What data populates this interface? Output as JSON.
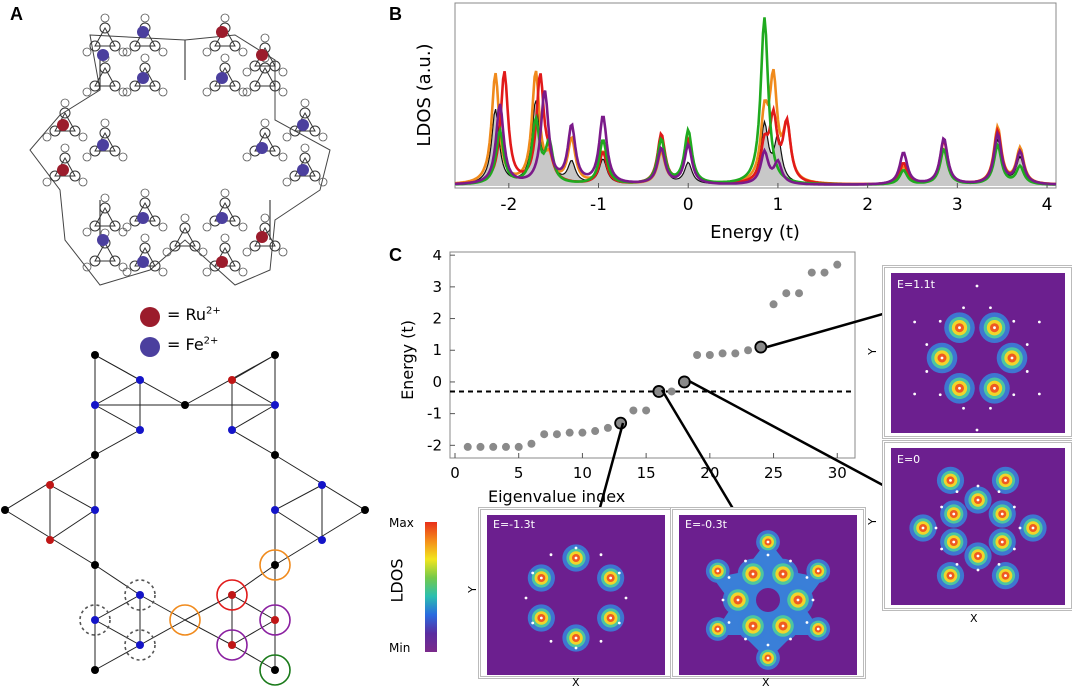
{
  "panels": {
    "a": {
      "letter": "A",
      "legend": [
        {
          "label": "= Ru",
          "sup": "2+",
          "color": "#9b1c2c"
        },
        {
          "label": "= Fe",
          "sup": "2+",
          "color": "#4b3f9e"
        }
      ]
    },
    "b": {
      "letter": "B",
      "chart_data": {
        "type": "line",
        "title": "",
        "xlabel": "Energy (t)",
        "ylabel": "LDOS (a.u.)",
        "xlim": [
          -2.6,
          4.1
        ],
        "xticks": [
          -2,
          -1,
          0,
          1,
          2,
          3,
          4
        ],
        "series": [
          {
            "name": "orange",
            "color": "#f08a1c",
            "peaks": [
              [
                -2.15,
                0.62
              ],
              [
                -1.7,
                0.62
              ],
              [
                -1.55,
                0.12
              ],
              [
                -1.3,
                0.25
              ],
              [
                -0.95,
                0.18
              ],
              [
                -0.3,
                0.18
              ],
              [
                0.0,
                0.25
              ],
              [
                0.85,
                0.35
              ],
              [
                0.95,
                0.55
              ],
              [
                1.1,
                0.3
              ],
              [
                2.4,
                0.1
              ],
              [
                2.85,
                0.2
              ],
              [
                3.45,
                0.32
              ],
              [
                3.7,
                0.2
              ]
            ]
          },
          {
            "name": "red",
            "color": "#e11a1a",
            "peaks": [
              [
                -2.05,
                0.63
              ],
              [
                -1.65,
                0.6
              ],
              [
                -1.55,
                0.1
              ],
              [
                -0.95,
                0.18
              ],
              [
                -0.3,
                0.28
              ],
              [
                0.0,
                0.25
              ],
              [
                0.85,
                0.2
              ],
              [
                0.95,
                0.35
              ],
              [
                1.1,
                0.33
              ],
              [
                2.4,
                0.12
              ],
              [
                2.85,
                0.25
              ],
              [
                3.45,
                0.3
              ],
              [
                3.7,
                0.18
              ]
            ]
          },
          {
            "name": "green",
            "color": "#1faa1f",
            "peaks": [
              [
                -2.1,
                0.3
              ],
              [
                -1.7,
                0.35
              ],
              [
                -1.55,
                0.22
              ],
              [
                -0.95,
                0.25
              ],
              [
                -0.3,
                0.25
              ],
              [
                0.0,
                0.3
              ],
              [
                0.85,
                0.94
              ],
              [
                2.4,
                0.08
              ],
              [
                2.85,
                0.2
              ],
              [
                3.45,
                0.22
              ],
              [
                3.7,
                0.1
              ]
            ]
          },
          {
            "name": "purple",
            "color": "#7b1a8a",
            "peaks": [
              [
                -2.1,
                0.45
              ],
              [
                -1.6,
                0.52
              ],
              [
                -1.3,
                0.32
              ],
              [
                -0.95,
                0.38
              ],
              [
                -0.3,
                0.2
              ],
              [
                0.0,
                0.22
              ],
              [
                0.85,
                0.18
              ],
              [
                1.0,
                0.12
              ],
              [
                2.4,
                0.18
              ],
              [
                2.85,
                0.26
              ],
              [
                3.45,
                0.28
              ],
              [
                3.7,
                0.18
              ]
            ]
          },
          {
            "name": "black",
            "color": "#111111",
            "fill": "#c8c8c8",
            "peaks": [
              [
                -2.15,
                0.42
              ],
              [
                -1.7,
                0.45
              ],
              [
                -1.55,
                0.2
              ],
              [
                -1.3,
                0.12
              ],
              [
                -0.95,
                0.14
              ],
              [
                -0.3,
                0.2
              ],
              [
                0.0,
                0.12
              ],
              [
                0.85,
                0.33
              ],
              [
                1.0,
                0.25
              ],
              [
                2.4,
                0.1
              ],
              [
                2.85,
                0.2
              ],
              [
                3.45,
                0.25
              ],
              [
                3.7,
                0.15
              ]
            ]
          }
        ]
      }
    },
    "c": {
      "letter": "C",
      "chart_data": {
        "type": "scatter",
        "xlabel": "Eigenvalue index",
        "ylabel": "Energy (t)",
        "xlim": [
          0,
          31
        ],
        "ylim": [
          -2.4,
          4.1
        ],
        "xticks": [
          0,
          5,
          10,
          15,
          20,
          25,
          30
        ],
        "yticks": [
          -2,
          -1,
          0,
          1,
          2,
          3,
          4
        ],
        "dashed_line_y": -0.3,
        "x": [
          1,
          2,
          3,
          4,
          5,
          6,
          7,
          8,
          9,
          10,
          11,
          12,
          13,
          14,
          15,
          16,
          17,
          18,
          19,
          20,
          21,
          22,
          23,
          24,
          25,
          26,
          27,
          28,
          29,
          30
        ],
        "y": [
          -2.05,
          -2.05,
          -2.05,
          -2.05,
          -2.05,
          -1.95,
          -1.65,
          -1.65,
          -1.6,
          -1.6,
          -1.55,
          -1.45,
          -1.3,
          -0.9,
          -0.9,
          -0.3,
          -0.3,
          0.0,
          0.85,
          0.85,
          0.9,
          0.9,
          1.0,
          1.1,
          2.45,
          2.8,
          2.8,
          3.45,
          3.45,
          3.7
        ],
        "highlighted_indices": [
          13,
          16,
          18,
          24
        ]
      },
      "colorbar": {
        "title": "LDOS",
        "max": "Max",
        "min": "Min"
      },
      "maps": [
        {
          "label": "E=-1.3t",
          "xlabel": "X",
          "ylabel": "Y"
        },
        {
          "label": "E=-0.3t",
          "xlabel": "X",
          "ylabel": ""
        },
        {
          "label": "E=1.1t",
          "xlabel": "X",
          "ylabel": "Y"
        },
        {
          "label": "E=0",
          "xlabel": "X",
          "ylabel": "Y"
        }
      ]
    }
  }
}
